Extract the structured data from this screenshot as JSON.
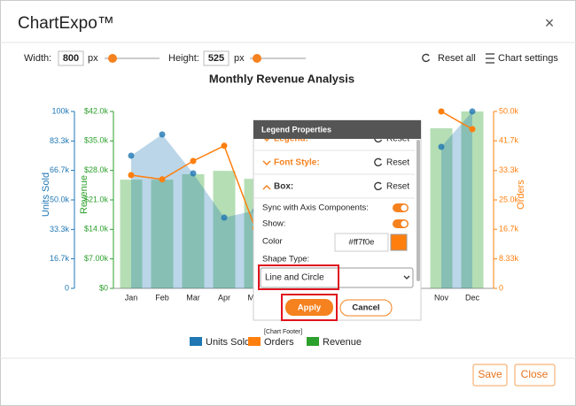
{
  "header": {
    "title": "ChartExpo™",
    "close": "×"
  },
  "toolbar": {
    "width_label": "Width:",
    "width_value": "800",
    "width_unit": "px",
    "height_label": "Height:",
    "height_value": "525",
    "height_unit": "px",
    "reset": "Reset all",
    "settings": "Chart settings"
  },
  "chart": {
    "type": "combo",
    "title": "Monthly Revenue Analysis",
    "categories": [
      "Jan",
      "Feb",
      "Mar",
      "Apr",
      "May",
      null,
      null,
      null,
      null,
      null,
      "Nov",
      "Dec"
    ],
    "series": [
      {
        "name": "Units Sold",
        "color": "#1f77b4",
        "kind": "area",
        "axis": "units",
        "values": [
          75000,
          87000,
          65000,
          40000,
          44000,
          null,
          null,
          null,
          null,
          null,
          80000,
          100000
        ]
      },
      {
        "name": "Orders",
        "color": "#ff7f0e",
        "kind": "line",
        "axis": "orders",
        "values": [
          32000,
          30800,
          36000,
          40300,
          17000,
          null,
          null,
          null,
          null,
          null,
          50000,
          45000
        ]
      },
      {
        "name": "Revenue",
        "color": "#2ca02c",
        "kind": "bar",
        "axis": "revenue",
        "values": [
          25800,
          25800,
          27100,
          27900,
          26000,
          null,
          null,
          null,
          null,
          null,
          38000,
          42000
        ]
      }
    ],
    "axes": {
      "units": {
        "label": "Units Sold",
        "color": "#1f77b4",
        "ylim": [
          0,
          100000
        ],
        "yticks": [
          0,
          {
            "value": 16700,
            "label": "16.7k"
          },
          {
            "value": 33300,
            "label": "33.3k"
          },
          {
            "value": 50000,
            "label": "50.0k"
          },
          {
            "value": 66700,
            "label": "66.7k"
          },
          {
            "value": 83300,
            "label": "83.3k"
          },
          {
            "value": 100000,
            "label": "100k"
          }
        ]
      },
      "revenue": {
        "label": "Revenue",
        "color": "#2ca02c",
        "ylim": [
          0,
          42000
        ],
        "yticks": [
          {
            "value": 0,
            "label": "$0"
          },
          {
            "value": 7000,
            "label": "$7.00k"
          },
          {
            "value": 14000,
            "label": "$14.0k"
          },
          {
            "value": 21000,
            "label": "$21.0k"
          },
          {
            "value": 28000,
            "label": "$28.0k"
          },
          {
            "value": 35000,
            "label": "$35.0k"
          },
          {
            "value": 42000,
            "label": "$42.0k"
          }
        ]
      },
      "orders": {
        "label": "Orders",
        "color": "#ff7f0e",
        "ylim": [
          0,
          50000
        ],
        "yticks": [
          0,
          {
            "value": 8330,
            "label": "8.33k"
          },
          {
            "value": 16700,
            "label": "16.7k"
          },
          {
            "value": 25000,
            "label": "25.0k"
          },
          {
            "value": 33300,
            "label": "33.3k"
          },
          {
            "value": 41700,
            "label": "41.7k"
          },
          {
            "value": 50000,
            "label": "50.0k"
          }
        ]
      }
    },
    "footer_note": "[Chart Footer]"
  },
  "popup": {
    "title": "Legend Properties",
    "sections": [
      {
        "label": "Legend:",
        "reset": "Reset"
      },
      {
        "label": "Font Style:",
        "reset": "Reset"
      },
      {
        "label": "Box:",
        "reset": "Reset"
      }
    ],
    "sync_label": "Sync with Axis Components:",
    "show_label": "Show:",
    "color_label": "Color",
    "color_value": "#ff7f0e",
    "shape_label": "Shape Type:",
    "shape_value": "Line and Circle",
    "apply": "Apply",
    "cancel": "Cancel"
  },
  "footer": {
    "save": "Save",
    "close": "Close"
  }
}
